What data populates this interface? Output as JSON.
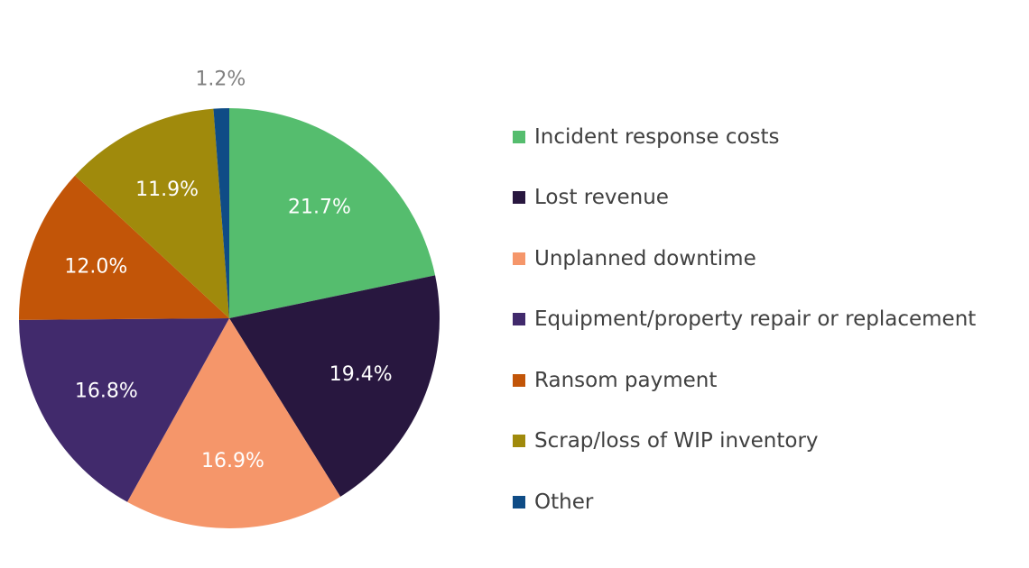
{
  "chart_data": {
    "type": "pie",
    "title": "",
    "categories": [
      "Incident response costs",
      "Lost revenue",
      "Unplanned downtime",
      "Equipment/property repair or replacement",
      "Ransom payment",
      "Scrap/loss of WIP inventory",
      "Other"
    ],
    "values": [
      21.7,
      19.4,
      16.9,
      16.8,
      12.0,
      11.9,
      1.2
    ],
    "data_labels": [
      "21.7%",
      "19.4%",
      "16.9%",
      "16.8%",
      "12.0%",
      "11.9%",
      "1.2%"
    ],
    "colors": [
      "#55bd6e",
      "#28173f",
      "#f5966a",
      "#412a6c",
      "#c25508",
      "#a08a0c",
      "#0f4c86"
    ],
    "label_colors": [
      "#ffffff",
      "#ffffff",
      "#ffffff",
      "#ffffff",
      "#ffffff",
      "#ffffff",
      "#7f7f7f"
    ],
    "start_angle": "12 o'clock",
    "direction": "clockwise",
    "legend_position": "right"
  }
}
